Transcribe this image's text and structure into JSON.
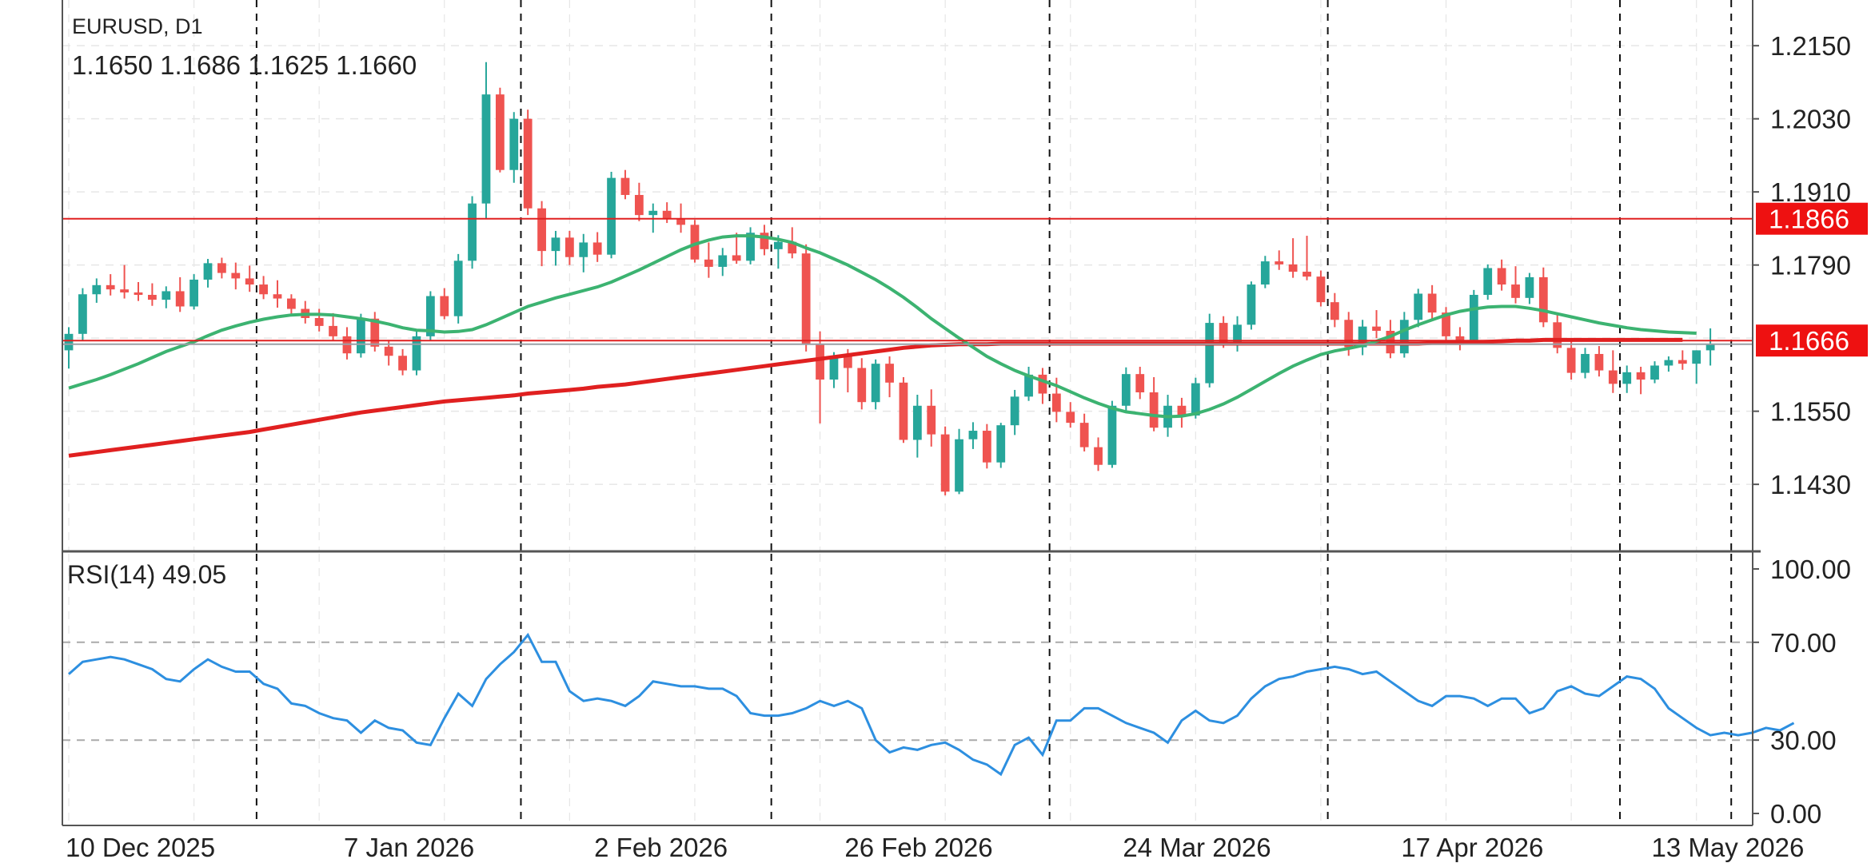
{
  "header": {
    "symbol": "EURUSD, D1",
    "ohlc": "1.1650 1.1686 1.1625 1.1660"
  },
  "rsi_panel": {
    "label": "RSI(14) 49.05"
  },
  "colors": {
    "bull": "#26a69a",
    "bear": "#ef5350",
    "ma_fast": "#3cb371",
    "ma_slow": "#e02020",
    "level_line": "#e02020",
    "rsi": "#2d8fe0",
    "grid": "#e6e6e6",
    "axis": "#555555",
    "price_tag_bg": "#ee1111",
    "price_tag_text": "#ffffff"
  },
  "chart_data": [
    {
      "type": "candlestick",
      "symbol": "EURUSD",
      "timeframe": "D1",
      "ylim": [
        1.132,
        1.2225
      ],
      "y_ticks": [
        1.215,
        1.203,
        1.191,
        1.179,
        1.167,
        1.155,
        1.143
      ],
      "y_tick_labels": [
        "1.2150",
        "1.2030",
        "1.1910",
        "1.1790",
        "",
        "1.1550",
        "1.1430"
      ],
      "x_labels": [
        "10 Dec 2025",
        "7 Jan 2026",
        "2 Feb 2026",
        "26 Feb 2026",
        "24 Mar 2026",
        "17 Apr 2026",
        "13 May 2026"
      ],
      "x_label_bar_index": [
        0,
        20,
        38,
        56,
        76,
        96,
        114
      ],
      "period_separators_bar_index": [
        14,
        33,
        51,
        71,
        91,
        112
      ],
      "future_bars": 3,
      "candles": [
        [
          1.165,
          1.1688,
          1.162,
          1.1677
        ],
        [
          1.1677,
          1.1752,
          1.1665,
          1.1742
        ],
        [
          1.1742,
          1.1768,
          1.1728,
          1.1757
        ],
        [
          1.1757,
          1.1775,
          1.174,
          1.175
        ],
        [
          1.175,
          1.179,
          1.1735,
          1.1745
        ],
        [
          1.1745,
          1.1762,
          1.1731,
          1.1741
        ],
        [
          1.1741,
          1.176,
          1.1723,
          1.1733
        ],
        [
          1.1733,
          1.1755,
          1.1719,
          1.1747
        ],
        [
          1.1747,
          1.177,
          1.1713,
          1.1722
        ],
        [
          1.1722,
          1.1775,
          1.1717,
          1.1766
        ],
        [
          1.1766,
          1.18,
          1.1753,
          1.1793
        ],
        [
          1.1793,
          1.1802,
          1.1768,
          1.1777
        ],
        [
          1.1777,
          1.1794,
          1.175,
          1.1768
        ],
        [
          1.1768,
          1.1789,
          1.1746,
          1.1758
        ],
        [
          1.1758,
          1.1772,
          1.1734,
          1.1742
        ],
        [
          1.1742,
          1.1765,
          1.172,
          1.1735
        ],
        [
          1.1735,
          1.1742,
          1.1706,
          1.1718
        ],
        [
          1.1718,
          1.1731,
          1.1694,
          1.1703
        ],
        [
          1.1703,
          1.1718,
          1.1681,
          1.169
        ],
        [
          1.169,
          1.1711,
          1.1667,
          1.1673
        ],
        [
          1.1673,
          1.1688,
          1.1635,
          1.1645
        ],
        [
          1.1645,
          1.171,
          1.1638,
          1.1702
        ],
        [
          1.1702,
          1.1713,
          1.1648,
          1.1656
        ],
        [
          1.1656,
          1.1667,
          1.1625,
          1.1641
        ],
        [
          1.1641,
          1.1652,
          1.1609,
          1.1617
        ],
        [
          1.1617,
          1.1682,
          1.1609,
          1.1673
        ],
        [
          1.1673,
          1.1747,
          1.1666,
          1.1739
        ],
        [
          1.1739,
          1.1752,
          1.1701,
          1.1706
        ],
        [
          1.1706,
          1.1808,
          1.1694,
          1.1797
        ],
        [
          1.1797,
          1.1903,
          1.1784,
          1.1891
        ],
        [
          1.1891,
          1.2123,
          1.1866,
          1.207
        ],
        [
          1.207,
          1.2081,
          1.1942,
          1.1946
        ],
        [
          1.1946,
          1.2041,
          1.1925,
          1.203
        ],
        [
          1.203,
          1.2045,
          1.1872,
          1.1883
        ],
        [
          1.1883,
          1.1895,
          1.1788,
          1.1813
        ],
        [
          1.1813,
          1.1846,
          1.1789,
          1.1835
        ],
        [
          1.1835,
          1.1846,
          1.179,
          1.1803
        ],
        [
          1.1803,
          1.1841,
          1.1778,
          1.1827
        ],
        [
          1.1827,
          1.1844,
          1.1795,
          1.1807
        ],
        [
          1.1807,
          1.1943,
          1.1801,
          1.1933
        ],
        [
          1.1933,
          1.1946,
          1.1898,
          1.1905
        ],
        [
          1.1905,
          1.1925,
          1.1862,
          1.1872
        ],
        [
          1.1872,
          1.1891,
          1.1843,
          1.1879
        ],
        [
          1.1879,
          1.1893,
          1.1859,
          1.1866
        ],
        [
          1.1866,
          1.1891,
          1.1843,
          1.1856
        ],
        [
          1.1856,
          1.1864,
          1.1794,
          1.1799
        ],
        [
          1.1799,
          1.1827,
          1.1769,
          1.1787
        ],
        [
          1.1787,
          1.1818,
          1.1772,
          1.1806
        ],
        [
          1.1806,
          1.1843,
          1.1792,
          1.1797
        ],
        [
          1.1797,
          1.1852,
          1.1791,
          1.1843
        ],
        [
          1.1843,
          1.1856,
          1.1806,
          1.1816
        ],
        [
          1.1816,
          1.1839,
          1.1784,
          1.1828
        ],
        [
          1.1828,
          1.1852,
          1.1801,
          1.1809
        ],
        [
          1.1809,
          1.1824,
          1.1648,
          1.1661
        ],
        [
          1.1661,
          1.1681,
          1.153,
          1.1602
        ],
        [
          1.1602,
          1.1647,
          1.1588,
          1.164
        ],
        [
          1.164,
          1.1652,
          1.1581,
          1.1621
        ],
        [
          1.1621,
          1.1637,
          1.1553,
          1.1565
        ],
        [
          1.1565,
          1.1635,
          1.1553,
          1.1628
        ],
        [
          1.1628,
          1.164,
          1.1573,
          1.1597
        ],
        [
          1.1597,
          1.1606,
          1.1498,
          1.1503
        ],
        [
          1.1503,
          1.1577,
          1.1474,
          1.1559
        ],
        [
          1.1559,
          1.1586,
          1.1492,
          1.1512
        ],
        [
          1.1512,
          1.1525,
          1.1412,
          1.1418
        ],
        [
          1.1418,
          1.1521,
          1.1414,
          1.1504
        ],
        [
          1.1504,
          1.1532,
          1.1488,
          1.1518
        ],
        [
          1.1518,
          1.1529,
          1.1456,
          1.1466
        ],
        [
          1.1466,
          1.1531,
          1.1457,
          1.1527
        ],
        [
          1.1527,
          1.1585,
          1.1511,
          1.1574
        ],
        [
          1.1574,
          1.1623,
          1.1567,
          1.161
        ],
        [
          1.161,
          1.1621,
          1.1562,
          1.1579
        ],
        [
          1.1579,
          1.1605,
          1.1532,
          1.1549
        ],
        [
          1.1549,
          1.1565,
          1.1523,
          1.1531
        ],
        [
          1.1531,
          1.1546,
          1.1484,
          1.1491
        ],
        [
          1.1491,
          1.1507,
          1.1452,
          1.1462
        ],
        [
          1.1462,
          1.1567,
          1.1457,
          1.1559
        ],
        [
          1.1559,
          1.1622,
          1.155,
          1.1611
        ],
        [
          1.1611,
          1.1623,
          1.157,
          1.1581
        ],
        [
          1.1581,
          1.1606,
          1.1517,
          1.1523
        ],
        [
          1.1523,
          1.1577,
          1.1508,
          1.1559
        ],
        [
          1.1559,
          1.1572,
          1.1523,
          1.1543
        ],
        [
          1.1543,
          1.1605,
          1.1538,
          1.1596
        ],
        [
          1.1596,
          1.171,
          1.1589,
          1.1695
        ],
        [
          1.1695,
          1.1706,
          1.1654,
          1.1659
        ],
        [
          1.1659,
          1.1706,
          1.1648,
          1.1692
        ],
        [
          1.1692,
          1.1763,
          1.1684,
          1.1758
        ],
        [
          1.1758,
          1.1805,
          1.1752,
          1.1796
        ],
        [
          1.1796,
          1.1814,
          1.1782,
          1.1791
        ],
        [
          1.1791,
          1.1834,
          1.1769,
          1.1779
        ],
        [
          1.1779,
          1.1838,
          1.1765,
          1.1771
        ],
        [
          1.1771,
          1.1781,
          1.1722,
          1.1729
        ],
        [
          1.1729,
          1.1744,
          1.1688,
          1.17
        ],
        [
          1.17,
          1.1713,
          1.1641,
          1.1655
        ],
        [
          1.1655,
          1.17,
          1.1642,
          1.1689
        ],
        [
          1.1689,
          1.1716,
          1.167,
          1.1682
        ],
        [
          1.1682,
          1.17,
          1.1637,
          1.1645
        ],
        [
          1.1645,
          1.1713,
          1.1638,
          1.17
        ],
        [
          1.17,
          1.1751,
          1.1688,
          1.1743
        ],
        [
          1.1743,
          1.1757,
          1.1698,
          1.1712
        ],
        [
          1.1712,
          1.1721,
          1.1662,
          1.1673
        ],
        [
          1.1673,
          1.1688,
          1.165,
          1.1667
        ],
        [
          1.1667,
          1.1749,
          1.166,
          1.1741
        ],
        [
          1.1741,
          1.1791,
          1.1733,
          1.1785
        ],
        [
          1.1785,
          1.1799,
          1.1748,
          1.1758
        ],
        [
          1.1758,
          1.1788,
          1.1727,
          1.1736
        ],
        [
          1.1736,
          1.1777,
          1.1726,
          1.177
        ],
        [
          1.177,
          1.1786,
          1.1688,
          1.1696
        ],
        [
          1.1696,
          1.1712,
          1.1645,
          1.1654
        ],
        [
          1.1654,
          1.1667,
          1.1602,
          1.1613
        ],
        [
          1.1613,
          1.1654,
          1.1604,
          1.1644
        ],
        [
          1.1644,
          1.1657,
          1.1607,
          1.1617
        ],
        [
          1.1617,
          1.165,
          1.158,
          1.1595
        ],
        [
          1.1595,
          1.1625,
          1.158,
          1.1614
        ],
        [
          1.1614,
          1.1623,
          1.1578,
          1.1602
        ],
        [
          1.1602,
          1.1632,
          1.1596,
          1.1625
        ],
        [
          1.1625,
          1.164,
          1.1615,
          1.1634
        ],
        [
          1.1634,
          1.165,
          1.1618,
          1.1628
        ],
        [
          1.1628,
          1.165,
          1.1595,
          1.165
        ],
        [
          1.165,
          1.1686,
          1.1625,
          1.166
        ]
      ],
      "series": [
        {
          "kind": "moving_average_fast",
          "values": [
            1.1588,
            1.1595,
            1.1602,
            1.161,
            1.1619,
            1.1628,
            1.1638,
            1.1648,
            1.1656,
            1.1664,
            1.1674,
            1.1683,
            1.169,
            1.1696,
            1.1701,
            1.1705,
            1.1708,
            1.1709,
            1.1709,
            1.1708,
            1.1705,
            1.1702,
            1.1698,
            1.1693,
            1.1687,
            1.1683,
            1.1682,
            1.168,
            1.1681,
            1.1684,
            1.1692,
            1.1702,
            1.1712,
            1.1722,
            1.1729,
            1.1736,
            1.1742,
            1.1748,
            1.1754,
            1.1762,
            1.1772,
            1.1782,
            1.1793,
            1.1804,
            1.1815,
            1.1824,
            1.1831,
            1.1836,
            1.1838,
            1.1838,
            1.1836,
            1.1832,
            1.1827,
            1.1818,
            1.181,
            1.18,
            1.179,
            1.1778,
            1.1766,
            1.1752,
            1.1737,
            1.172,
            1.1702,
            1.1686,
            1.167,
            1.1655,
            1.164,
            1.1628,
            1.1617,
            1.1608,
            1.16,
            1.1592,
            1.1582,
            1.1572,
            1.1563,
            1.1555,
            1.1549,
            1.1546,
            1.1543,
            1.1541,
            1.1542,
            1.1546,
            1.1553,
            1.1562,
            1.1573,
            1.1586,
            1.1599,
            1.1612,
            1.1624,
            1.1634,
            1.1643,
            1.1649,
            1.1653,
            1.1658,
            1.1665,
            1.1673,
            1.1683,
            1.1692,
            1.17,
            1.1708,
            1.1714,
            1.1718,
            1.1721,
            1.1722,
            1.1722,
            1.1719,
            1.1715,
            1.171,
            1.1705,
            1.17,
            1.1695,
            1.1691,
            1.1687,
            1.1684,
            1.1682,
            1.168,
            1.1679,
            1.1678
          ]
        },
        {
          "kind": "moving_average_slow",
          "values": [
            1.1477,
            1.148,
            1.1483,
            1.1486,
            1.1489,
            1.1492,
            1.1495,
            1.1498,
            1.1501,
            1.1504,
            1.1507,
            1.151,
            1.1513,
            1.1516,
            1.152,
            1.1524,
            1.1528,
            1.1532,
            1.1536,
            1.154,
            1.1544,
            1.1548,
            1.1551,
            1.1554,
            1.1557,
            1.156,
            1.1563,
            1.1566,
            1.1568,
            1.157,
            1.1572,
            1.1574,
            1.1576,
            1.1579,
            1.1581,
            1.1583,
            1.1585,
            1.1587,
            1.159,
            1.1592,
            1.1594,
            1.1597,
            1.16,
            1.1603,
            1.1606,
            1.1609,
            1.1612,
            1.1615,
            1.1618,
            1.1621,
            1.1624,
            1.1627,
            1.163,
            1.1633,
            1.1636,
            1.1639,
            1.1642,
            1.1645,
            1.1648,
            1.1651,
            1.1654,
            1.1656,
            1.1658,
            1.1659,
            1.166,
            1.166,
            1.166,
            1.1661,
            1.1661,
            1.1661,
            1.1661,
            1.1661,
            1.1661,
            1.1661,
            1.1661,
            1.1661,
            1.1661,
            1.1661,
            1.1661,
            1.1661,
            1.1661,
            1.1661,
            1.1661,
            1.1661,
            1.1661,
            1.1661,
            1.1661,
            1.1661,
            1.1661,
            1.1661,
            1.1661,
            1.1661,
            1.1661,
            1.1661,
            1.1661,
            1.1661,
            1.1661,
            1.1661,
            1.1662,
            1.1662,
            1.1662,
            1.1663,
            1.1664,
            1.1665,
            1.1666,
            1.1666,
            1.1667,
            1.1667,
            1.1667,
            1.1667,
            1.1667,
            1.1667,
            1.1667,
            1.1667,
            1.1667,
            1.1667,
            1.1667
          ]
        }
      ],
      "levels": [
        {
          "price": 1.1866,
          "label": "1.1866"
        },
        {
          "price": 1.1666,
          "label": "1.1666"
        }
      ],
      "current_price_line": 1.166
    },
    {
      "type": "line",
      "indicator": "RSI(14)",
      "ylim": [
        0,
        100
      ],
      "y_ticks": [
        100,
        70,
        30,
        0
      ],
      "y_tick_labels": [
        "100.00",
        "70.00",
        "30.00",
        "0.00"
      ],
      "reference_levels": [
        70,
        30
      ],
      "values": [
        57,
        62,
        63,
        64,
        63,
        61,
        59,
        55,
        54,
        59,
        63,
        60,
        58,
        58,
        53,
        51,
        45,
        44,
        41,
        39,
        38,
        33,
        38,
        35,
        34,
        29,
        28,
        39,
        49,
        44,
        55,
        61,
        66,
        73,
        62,
        62,
        50,
        46,
        47,
        46,
        44,
        48,
        54,
        53,
        52,
        52,
        51,
        51,
        48,
        41,
        40,
        40,
        41,
        43,
        46,
        44,
        46,
        43,
        30,
        25,
        27,
        26,
        28,
        29,
        26,
        22,
        20,
        16,
        28,
        31,
        24,
        38,
        38,
        43,
        43,
        40,
        37,
        35,
        33,
        29,
        38,
        42,
        38,
        37,
        40,
        47,
        52,
        55,
        56,
        58,
        59,
        60,
        59,
        57,
        58,
        54,
        50,
        46,
        44,
        48,
        48,
        47,
        44,
        47,
        47,
        41,
        43,
        50,
        52,
        49,
        48,
        52,
        56,
        55,
        51,
        43,
        39,
        35,
        32,
        33,
        32,
        33,
        35,
        34,
        37
      ]
    }
  ]
}
